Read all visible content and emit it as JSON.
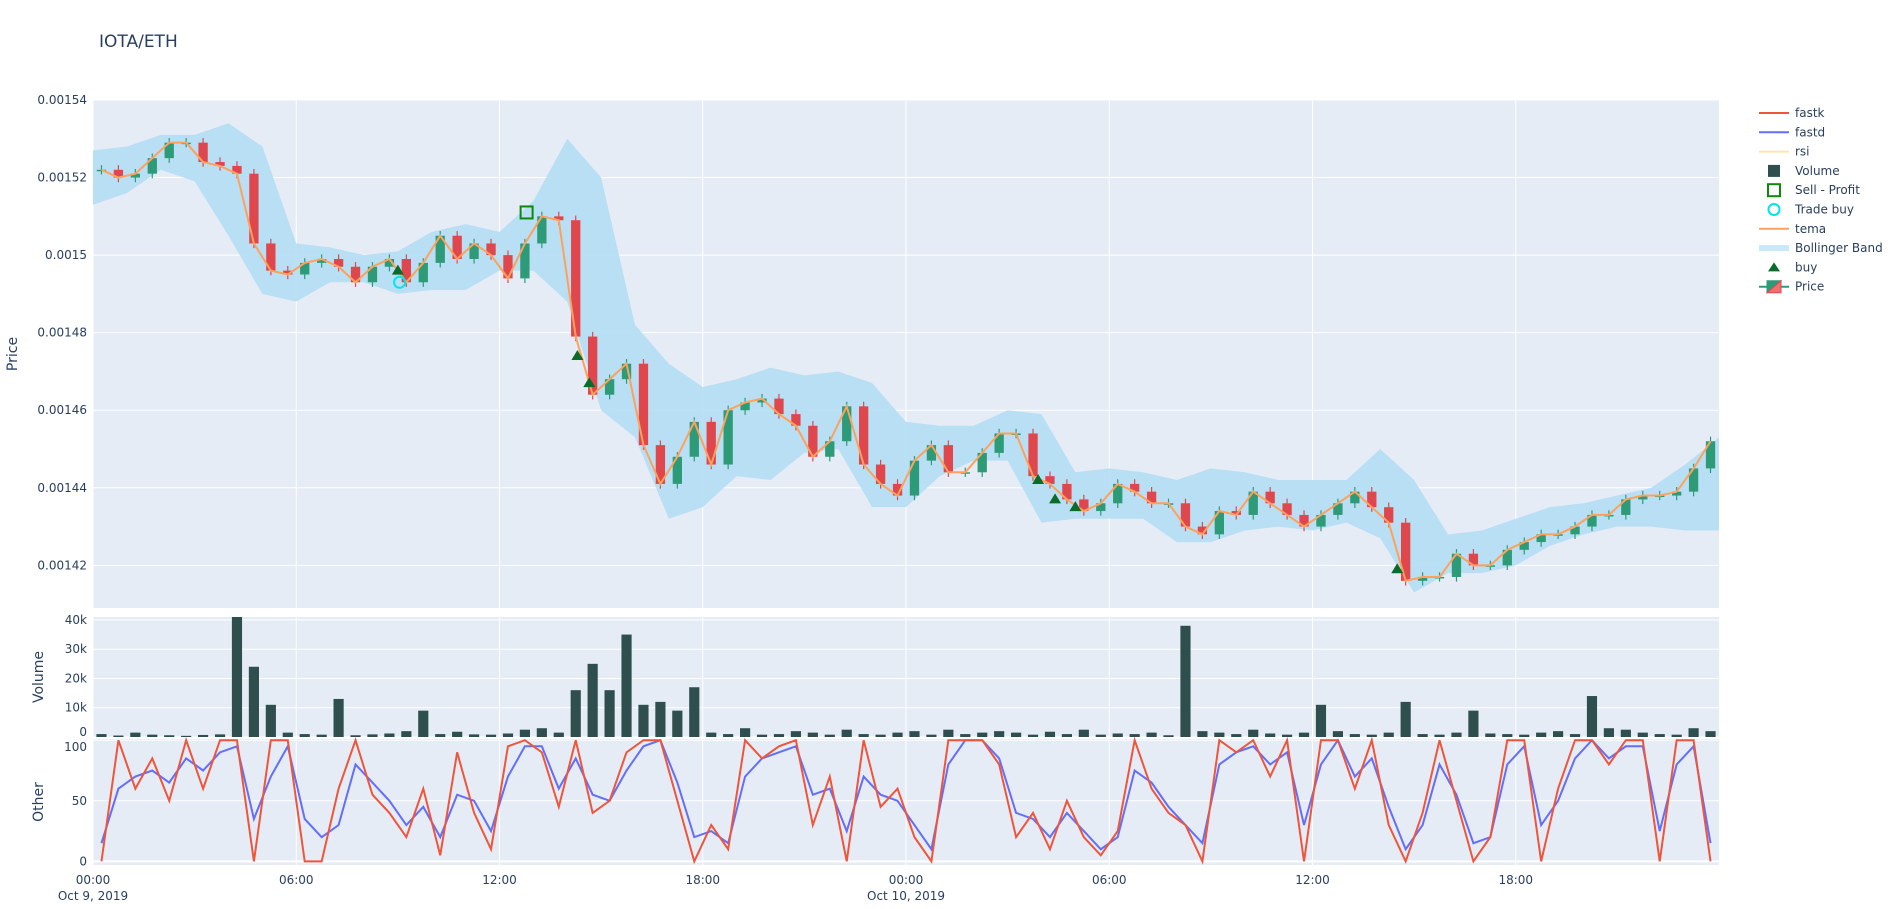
{
  "title": "IOTA/ETH",
  "colors": {
    "background": "#e5ecf6",
    "increasing": "#2e9b78",
    "decreasing": "#e0474c",
    "tema": "#FFA15A",
    "bollinger": "#b6def4",
    "volume": "#2f4f4f",
    "fastk": "#EF553B",
    "fastd": "#636EFA",
    "rsi": "#ffe4b0",
    "buy": "#0a6b2a",
    "sell_profit": "#0a8a0a",
    "trade_buy": "#00e5ee"
  },
  "legend": [
    {
      "label": "fastk",
      "icon": "line-icon",
      "color": "#EF553B"
    },
    {
      "label": "fastd",
      "icon": "line-icon",
      "color": "#636EFA"
    },
    {
      "label": "rsi",
      "icon": "line-icon",
      "color": "#ffe4b0",
      "hidden": true
    },
    {
      "label": "Volume",
      "icon": "square-icon",
      "color": "#2f4f4f"
    },
    {
      "label": "Sell - Profit",
      "icon": "open-square-icon",
      "color": "#0a8a0a"
    },
    {
      "label": "Trade buy",
      "icon": "open-circle-icon",
      "color": "#00e5ee"
    },
    {
      "label": "tema",
      "icon": "line-icon",
      "color": "#FFA15A"
    },
    {
      "label": "Bollinger Band",
      "icon": "band-icon",
      "color": "#c9e8f8"
    },
    {
      "label": "buy",
      "icon": "triangle-up-icon",
      "color": "#0a6b2a"
    },
    {
      "label": "Price",
      "icon": "candlestick-icon",
      "color": "#2e9b78"
    }
  ],
  "chart_data": {
    "type": "candlestick",
    "title": "IOTA/ETH",
    "x_range": [
      "2019-10-09 00:00",
      "2019-10-10 23:55"
    ],
    "x_ticks": [
      {
        "label": "00:00",
        "sub": "Oct 9, 2019",
        "value": "2019-10-09 00:00"
      },
      {
        "label": "06:00",
        "sub": "",
        "value": "2019-10-09 06:00"
      },
      {
        "label": "12:00",
        "sub": "",
        "value": "2019-10-09 12:00"
      },
      {
        "label": "18:00",
        "sub": "",
        "value": "2019-10-09 18:00"
      },
      {
        "label": "00:00",
        "sub": "Oct 10, 2019",
        "value": "2019-10-10 00:00"
      },
      {
        "label": "06:00",
        "sub": "",
        "value": "2019-10-10 06:00"
      },
      {
        "label": "12:00",
        "sub": "",
        "value": "2019-10-10 12:00"
      },
      {
        "label": "18:00",
        "sub": "",
        "value": "2019-10-10 18:00"
      }
    ],
    "grid": true,
    "legend_position": "right",
    "panels": {
      "price": {
        "ylabel": "Price",
        "ylim": [
          0.001409,
          0.00154
        ],
        "ticks": [
          "0.00142",
          "0.00144",
          "0.00146",
          "0.00148",
          "0.0015",
          "0.00152",
          "0.00154"
        ]
      },
      "volume": {
        "ylabel": "Volume",
        "ylim": [
          0,
          41000
        ],
        "ticks": [
          {
            "v": 0,
            "label": "0"
          },
          {
            "v": 10000,
            "label": "10k"
          },
          {
            "v": 20000,
            "label": "20k"
          },
          {
            "v": 30000,
            "label": "30k"
          },
          {
            "v": 40000,
            "label": "40k"
          }
        ]
      },
      "other": {
        "ylabel": "Other",
        "ylim": [
          -3,
          101
        ],
        "ticks": [
          {
            "v": 0,
            "label": "0"
          },
          {
            "v": 50,
            "label": "50"
          },
          {
            "v": 100,
            "label": "100"
          }
        ]
      }
    },
    "x": [
      "2019-10-09 00:00",
      "2019-10-09 00:30",
      "2019-10-09 01:00",
      "2019-10-09 01:30",
      "2019-10-09 02:00",
      "2019-10-09 02:30",
      "2019-10-09 03:00",
      "2019-10-09 03:30",
      "2019-10-09 04:00",
      "2019-10-09 04:30",
      "2019-10-09 05:00",
      "2019-10-09 05:30",
      "2019-10-09 06:00",
      "2019-10-09 06:30",
      "2019-10-09 07:00",
      "2019-10-09 07:30",
      "2019-10-09 08:00",
      "2019-10-09 08:30",
      "2019-10-09 09:00",
      "2019-10-09 09:30",
      "2019-10-09 10:00",
      "2019-10-09 10:30",
      "2019-10-09 11:00",
      "2019-10-09 11:30",
      "2019-10-09 12:00",
      "2019-10-09 12:30",
      "2019-10-09 13:00",
      "2019-10-09 13:30",
      "2019-10-09 14:00",
      "2019-10-09 14:30",
      "2019-10-09 15:00",
      "2019-10-09 15:30",
      "2019-10-09 16:00",
      "2019-10-09 16:30",
      "2019-10-09 17:00",
      "2019-10-09 17:30",
      "2019-10-09 18:00",
      "2019-10-09 18:30",
      "2019-10-09 19:00",
      "2019-10-09 19:30",
      "2019-10-09 20:00",
      "2019-10-09 20:30",
      "2019-10-09 21:00",
      "2019-10-09 21:30",
      "2019-10-09 22:00",
      "2019-10-09 22:30",
      "2019-10-09 23:00",
      "2019-10-09 23:30",
      "2019-10-10 00:00",
      "2019-10-10 00:30",
      "2019-10-10 01:00",
      "2019-10-10 01:30",
      "2019-10-10 02:00",
      "2019-10-10 02:30",
      "2019-10-10 03:00",
      "2019-10-10 03:30",
      "2019-10-10 04:00",
      "2019-10-10 04:30",
      "2019-10-10 05:00",
      "2019-10-10 05:30",
      "2019-10-10 06:00",
      "2019-10-10 06:30",
      "2019-10-10 07:00",
      "2019-10-10 07:30",
      "2019-10-10 08:00",
      "2019-10-10 08:30",
      "2019-10-10 09:00",
      "2019-10-10 09:30",
      "2019-10-10 10:00",
      "2019-10-10 10:30",
      "2019-10-10 11:00",
      "2019-10-10 11:30",
      "2019-10-10 12:00",
      "2019-10-10 12:30",
      "2019-10-10 13:00",
      "2019-10-10 13:30",
      "2019-10-10 14:00",
      "2019-10-10 14:30",
      "2019-10-10 15:00",
      "2019-10-10 15:30",
      "2019-10-10 16:00",
      "2019-10-10 16:30",
      "2019-10-10 17:00",
      "2019-10-10 17:30",
      "2019-10-10 18:00",
      "2019-10-10 18:30",
      "2019-10-10 19:00",
      "2019-10-10 19:30",
      "2019-10-10 20:00",
      "2019-10-10 20:30",
      "2019-10-10 21:00",
      "2019-10-10 21:30",
      "2019-10-10 22:00",
      "2019-10-10 22:30",
      "2019-10-10 23:00",
      "2019-10-10 23:30"
    ],
    "price_close": [
      0.001522,
      0.00152,
      0.001521,
      0.001525,
      0.001529,
      0.001529,
      0.001524,
      0.001523,
      0.001521,
      0.001503,
      0.001496,
      0.001495,
      0.001498,
      0.001499,
      0.001497,
      0.001493,
      0.001497,
      0.001499,
      0.001493,
      0.001498,
      0.001505,
      0.001499,
      0.001503,
      0.0015,
      0.001494,
      0.001503,
      0.00151,
      0.001509,
      0.001479,
      0.001464,
      0.001468,
      0.001472,
      0.001451,
      0.001441,
      0.001448,
      0.001457,
      0.001446,
      0.00146,
      0.001462,
      0.001463,
      0.001459,
      0.001456,
      0.001448,
      0.001452,
      0.001461,
      0.001446,
      0.001441,
      0.001438,
      0.001447,
      0.001451,
      0.001444,
      0.001444,
      0.001449,
      0.001454,
      0.001454,
      0.001443,
      0.001441,
      0.001437,
      0.001434,
      0.001436,
      0.001441,
      0.001439,
      0.001436,
      0.001436,
      0.00143,
      0.001428,
      0.001434,
      0.001433,
      0.001439,
      0.001436,
      0.001433,
      0.00143,
      0.001433,
      0.001436,
      0.001439,
      0.001435,
      0.001431,
      0.001416,
      0.001417,
      0.001417,
      0.001423,
      0.00142,
      0.00142,
      0.001424,
      0.001426,
      0.001428,
      0.001428,
      0.00143,
      0.001433,
      0.001433,
      0.001437,
      0.001438,
      0.001438,
      0.001439,
      0.001445,
      0.001452
    ],
    "tema": [
      0.001522,
      0.00152,
      0.001521,
      0.001525,
      0.001529,
      0.001529,
      0.001524,
      0.001523,
      0.001521,
      0.001503,
      0.001496,
      0.001495,
      0.001498,
      0.001499,
      0.001497,
      0.001493,
      0.001497,
      0.001499,
      0.001493,
      0.001498,
      0.001505,
      0.001499,
      0.001503,
      0.0015,
      0.001494,
      0.001503,
      0.00151,
      0.001509,
      0.001479,
      0.001464,
      0.001468,
      0.001472,
      0.001451,
      0.001441,
      0.001448,
      0.001457,
      0.001446,
      0.00146,
      0.001462,
      0.001463,
      0.001459,
      0.001456,
      0.001448,
      0.001452,
      0.001461,
      0.001446,
      0.001441,
      0.001438,
      0.001447,
      0.001451,
      0.001444,
      0.001444,
      0.001449,
      0.001454,
      0.001454,
      0.001443,
      0.001441,
      0.001437,
      0.001434,
      0.001436,
      0.001441,
      0.001439,
      0.001436,
      0.001436,
      0.00143,
      0.001428,
      0.001434,
      0.001433,
      0.001439,
      0.001436,
      0.001433,
      0.00143,
      0.001433,
      0.001436,
      0.001439,
      0.001435,
      0.001431,
      0.001416,
      0.001417,
      0.001417,
      0.001423,
      0.00142,
      0.00142,
      0.001424,
      0.001426,
      0.001428,
      0.001428,
      0.00143,
      0.001433,
      0.001433,
      0.001437,
      0.001438,
      0.001438,
      0.001439,
      0.001445,
      0.001452
    ],
    "bollinger": {
      "x_hours_from": "2019-10-09 00:00",
      "upper": [
        0.001527,
        0.001528,
        0.001531,
        0.001531,
        0.001534,
        0.001528,
        0.001503,
        0.001502,
        0.0015,
        0.001501,
        0.001506,
        0.001508,
        0.001506,
        0.001514,
        0.00153,
        0.00152,
        0.001482,
        0.001472,
        0.001466,
        0.001468,
        0.001471,
        0.001469,
        0.00147,
        0.001467,
        0.001457,
        0.001456,
        0.001456,
        0.00146,
        0.001459,
        0.001444,
        0.001445,
        0.001444,
        0.001442,
        0.001445,
        0.001444,
        0.001442,
        0.001442,
        0.001442,
        0.00145,
        0.001442,
        0.001428,
        0.001429,
        0.001432,
        0.001435,
        0.001436,
        0.001438,
        0.00144,
        0.001446,
        0.001453
      ],
      "lower": [
        0.001513,
        0.001516,
        0.001522,
        0.001519,
        0.001505,
        0.00149,
        0.001488,
        0.001493,
        0.001493,
        0.00149,
        0.001491,
        0.001491,
        0.001496,
        0.001496,
        0.001488,
        0.00146,
        0.001453,
        0.001432,
        0.001435,
        0.001443,
        0.001442,
        0.001449,
        0.00145,
        0.001435,
        0.001435,
        0.001443,
        0.001447,
        0.001447,
        0.001431,
        0.001432,
        0.001432,
        0.001432,
        0.001426,
        0.001426,
        0.001429,
        0.00143,
        0.001429,
        0.001431,
        0.001427,
        0.001413,
        0.001418,
        0.001418,
        0.00142,
        0.001425,
        0.001428,
        0.00143,
        0.00143,
        0.001429,
        0.001429
      ]
    },
    "volume": [
      1000,
      500,
      1500,
      800,
      600,
      400,
      700,
      900,
      41000,
      24000,
      11000,
      1500,
      1000,
      800,
      13000,
      600,
      900,
      1200,
      2000,
      9000,
      1000,
      1800,
      900,
      800,
      1200,
      2500,
      3000,
      1500,
      16000,
      25000,
      16000,
      35000,
      11000,
      12000,
      9000,
      17000,
      1500,
      1000,
      3000,
      800,
      1000,
      2000,
      1500,
      800,
      2500,
      1000,
      800,
      1500,
      2000,
      800,
      2500,
      1000,
      1500,
      2000,
      1500,
      800,
      1800,
      1000,
      2500,
      800,
      1200,
      1000,
      1500,
      600,
      38000,
      2000,
      1500,
      1000,
      2500,
      1200,
      800,
      1500,
      11000,
      2000,
      1000,
      800,
      1500,
      12000,
      1000,
      800,
      1500,
      9000,
      1200,
      1000,
      800,
      1500,
      2000,
      1000,
      14000,
      3000,
      2500,
      1500,
      1000,
      800,
      3000,
      2000
    ],
    "fastk": [
      0,
      100,
      60,
      85,
      50,
      100,
      60,
      100,
      100,
      0,
      100,
      100,
      0,
      0,
      60,
      100,
      55,
      40,
      20,
      60,
      5,
      90,
      40,
      10,
      95,
      100,
      90,
      45,
      100,
      40,
      50,
      90,
      100,
      100,
      50,
      0,
      30,
      10,
      100,
      85,
      95,
      100,
      30,
      70,
      0,
      100,
      45,
      60,
      20,
      0,
      100,
      100,
      100,
      80,
      20,
      40,
      10,
      50,
      20,
      5,
      25,
      100,
      60,
      40,
      30,
      0,
      100,
      90,
      100,
      70,
      100,
      0,
      100,
      100,
      60,
      100,
      30,
      0,
      40,
      100,
      50,
      0,
      20,
      100,
      100,
      0,
      60,
      100,
      100,
      80,
      100,
      100,
      0,
      100,
      100,
      0
    ],
    "fastd": [
      15,
      60,
      70,
      75,
      65,
      85,
      75,
      90,
      95,
      35,
      70,
      95,
      35,
      20,
      30,
      80,
      65,
      50,
      30,
      45,
      20,
      55,
      50,
      25,
      70,
      95,
      95,
      60,
      85,
      55,
      50,
      75,
      95,
      100,
      65,
      20,
      25,
      15,
      70,
      85,
      90,
      95,
      55,
      60,
      25,
      70,
      55,
      50,
      30,
      10,
      80,
      100,
      100,
      85,
      40,
      35,
      20,
      40,
      25,
      10,
      20,
      75,
      65,
      45,
      30,
      15,
      80,
      90,
      95,
      80,
      90,
      30,
      80,
      100,
      70,
      85,
      45,
      10,
      30,
      80,
      55,
      15,
      20,
      80,
      95,
      30,
      50,
      85,
      100,
      85,
      95,
      95,
      25,
      80,
      95,
      15
    ],
    "buy_signals": [
      {
        "x": "2019-10-09 09:00",
        "y": 0.001496
      },
      {
        "x": "2019-10-09 14:18",
        "y": 0.001474
      },
      {
        "x": "2019-10-09 14:39",
        "y": 0.001467
      },
      {
        "x": "2019-10-10 03:54",
        "y": 0.001442
      },
      {
        "x": "2019-10-10 04:24",
        "y": 0.001437
      },
      {
        "x": "2019-10-10 05:00",
        "y": 0.001435
      },
      {
        "x": "2019-10-10 14:30",
        "y": 0.001419
      }
    ],
    "trade_buy": [
      {
        "x": "2019-10-09 09:03",
        "y": 0.001493
      }
    ],
    "sell_profit": [
      {
        "x": "2019-10-09 12:48",
        "y": 0.001511
      }
    ]
  }
}
